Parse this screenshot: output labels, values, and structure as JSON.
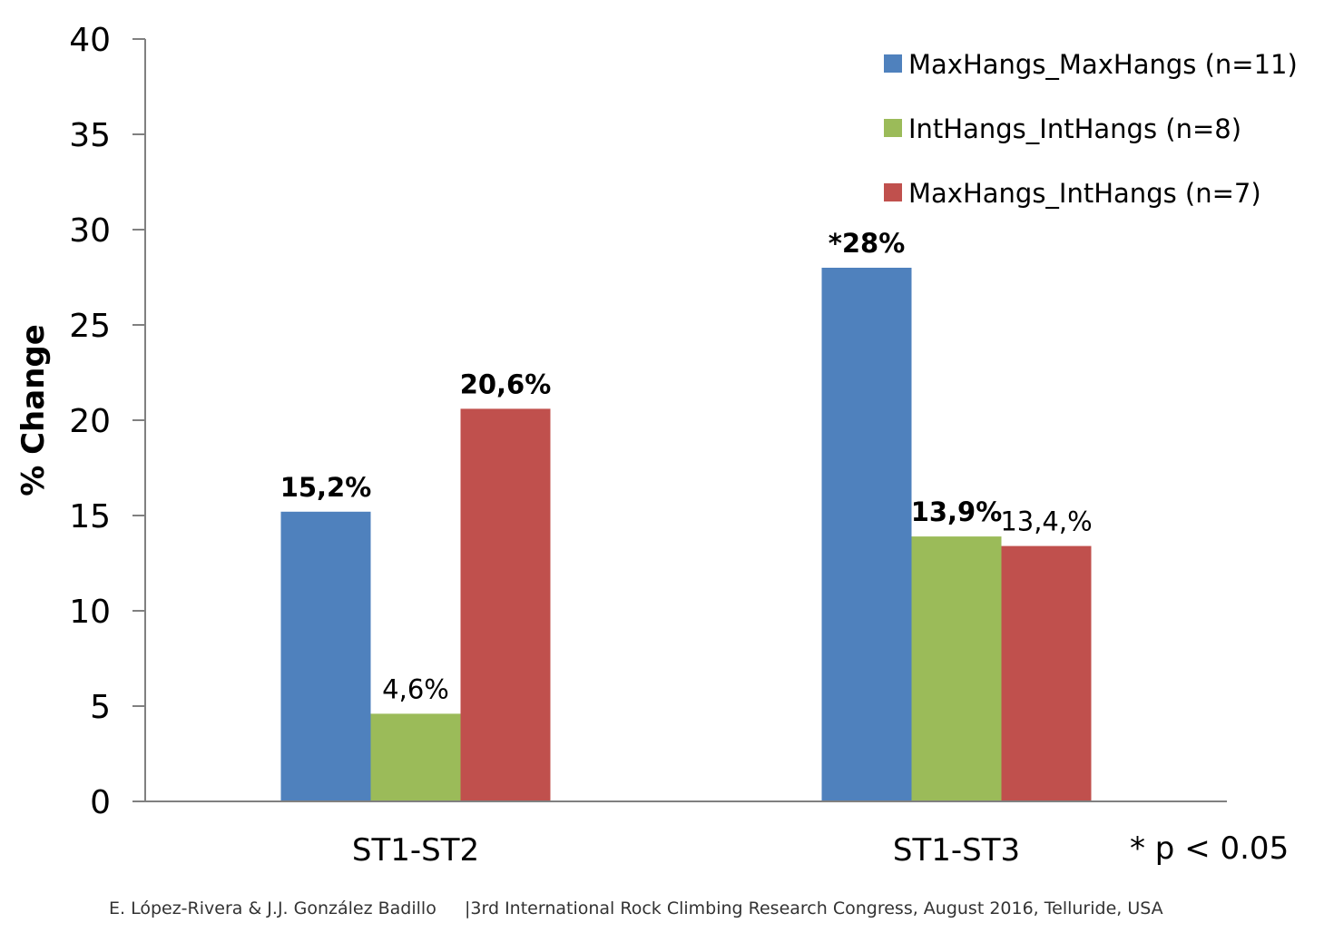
{
  "chart_data": {
    "type": "bar",
    "categories": [
      "ST1-ST2",
      "ST1-ST3"
    ],
    "series": [
      {
        "name": "MaxHangs_MaxHangs (n=11)",
        "color": "#4F81BD",
        "values": [
          15.2,
          28
        ],
        "labels": [
          "15,2%",
          "*28%"
        ],
        "label_bold": [
          true,
          true
        ]
      },
      {
        "name": "IntHangs_IntHangs (n=8)",
        "color": "#9BBB59",
        "values": [
          4.6,
          13.9
        ],
        "labels": [
          "4,6%",
          "13,9%"
        ],
        "label_bold": [
          false,
          true
        ]
      },
      {
        "name": "MaxHangs_IntHangs (n=7)",
        "color": "#C0504D",
        "values": [
          20.6,
          13.4
        ],
        "labels": [
          "20,6%",
          "13,4,%"
        ],
        "label_bold": [
          true,
          false
        ]
      }
    ],
    "ylabel": "% Change",
    "ylim": [
      0,
      40
    ],
    "yticks": [
      0,
      5,
      10,
      15,
      20,
      25,
      30,
      35,
      40
    ],
    "grid": false,
    "legend_position": "top-right",
    "annotation": "* p < 0.05"
  },
  "footer": {
    "authors": "E. López-Rivera & J.J. González Badillo",
    "event": "|3rd International Rock Climbing Research Congress, August 2016, Telluride, USA"
  }
}
